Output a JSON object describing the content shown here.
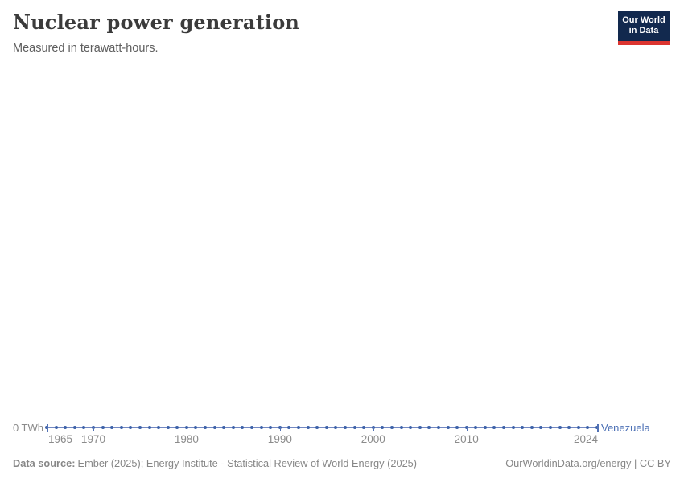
{
  "header": {
    "title": "Nuclear power generation",
    "subtitle": "Measured in terawatt-hours.",
    "logo_line1": "Our World",
    "logo_line2": "in Data"
  },
  "chart_data": {
    "type": "line",
    "title": "Nuclear power generation",
    "subtitle": "Measured in terawatt-hours.",
    "unit": "TWh",
    "x_range": [
      1965,
      2024
    ],
    "ylim": [
      0,
      0
    ],
    "grid": false,
    "legend_position": "end-of-line",
    "y_axis": {
      "label": "0 TWh",
      "min_label_value": 0
    },
    "x_ticks": [
      {
        "year": 1965,
        "label": "1965",
        "align": "left"
      },
      {
        "year": 1970,
        "label": "1970",
        "align": "center"
      },
      {
        "year": 1980,
        "label": "1980",
        "align": "center"
      },
      {
        "year": 1990,
        "label": "1990",
        "align": "center"
      },
      {
        "year": 2000,
        "label": "2000",
        "align": "center"
      },
      {
        "year": 2010,
        "label": "2010",
        "align": "center"
      },
      {
        "year": 2024,
        "label": "2024",
        "align": "right"
      }
    ],
    "series": [
      {
        "name": "Venezuela",
        "x": [
          1965,
          1966,
          1967,
          1968,
          1969,
          1970,
          1971,
          1972,
          1973,
          1974,
          1975,
          1976,
          1977,
          1978,
          1979,
          1980,
          1981,
          1982,
          1983,
          1984,
          1985,
          1986,
          1987,
          1988,
          1989,
          1990,
          1991,
          1992,
          1993,
          1994,
          1995,
          1996,
          1997,
          1998,
          1999,
          2000,
          2001,
          2002,
          2003,
          2004,
          2005,
          2006,
          2007,
          2008,
          2009,
          2010,
          2011,
          2012,
          2013,
          2014,
          2015,
          2016,
          2017,
          2018,
          2019,
          2020,
          2021,
          2022,
          2023,
          2024
        ],
        "values": [
          0,
          0,
          0,
          0,
          0,
          0,
          0,
          0,
          0,
          0,
          0,
          0,
          0,
          0,
          0,
          0,
          0,
          0,
          0,
          0,
          0,
          0,
          0,
          0,
          0,
          0,
          0,
          0,
          0,
          0,
          0,
          0,
          0,
          0,
          0,
          0,
          0,
          0,
          0,
          0,
          0,
          0,
          0,
          0,
          0,
          0,
          0,
          0,
          0,
          0,
          0,
          0,
          0,
          0,
          0,
          0,
          0,
          0,
          0,
          0
        ]
      }
    ]
  },
  "footer": {
    "source_label": "Data source:",
    "source_text": "Ember (2025); Energy Institute - Statistical Review of World Energy (2025)",
    "attribution": "OurWorldinData.org/energy | CC BY"
  },
  "theme": {
    "bg": "#FFFFFF",
    "title": "#3B3B3B",
    "subtitle": "#5E5E5E",
    "muted": "#8B8B8B",
    "footer": "#878787",
    "accent": "#4C70B5",
    "line": "#7288C2",
    "dot": "#3D62A9",
    "tick": "#5272B5",
    "logo-bg": "#12294E",
    "logo-red": "#DC3530"
  }
}
